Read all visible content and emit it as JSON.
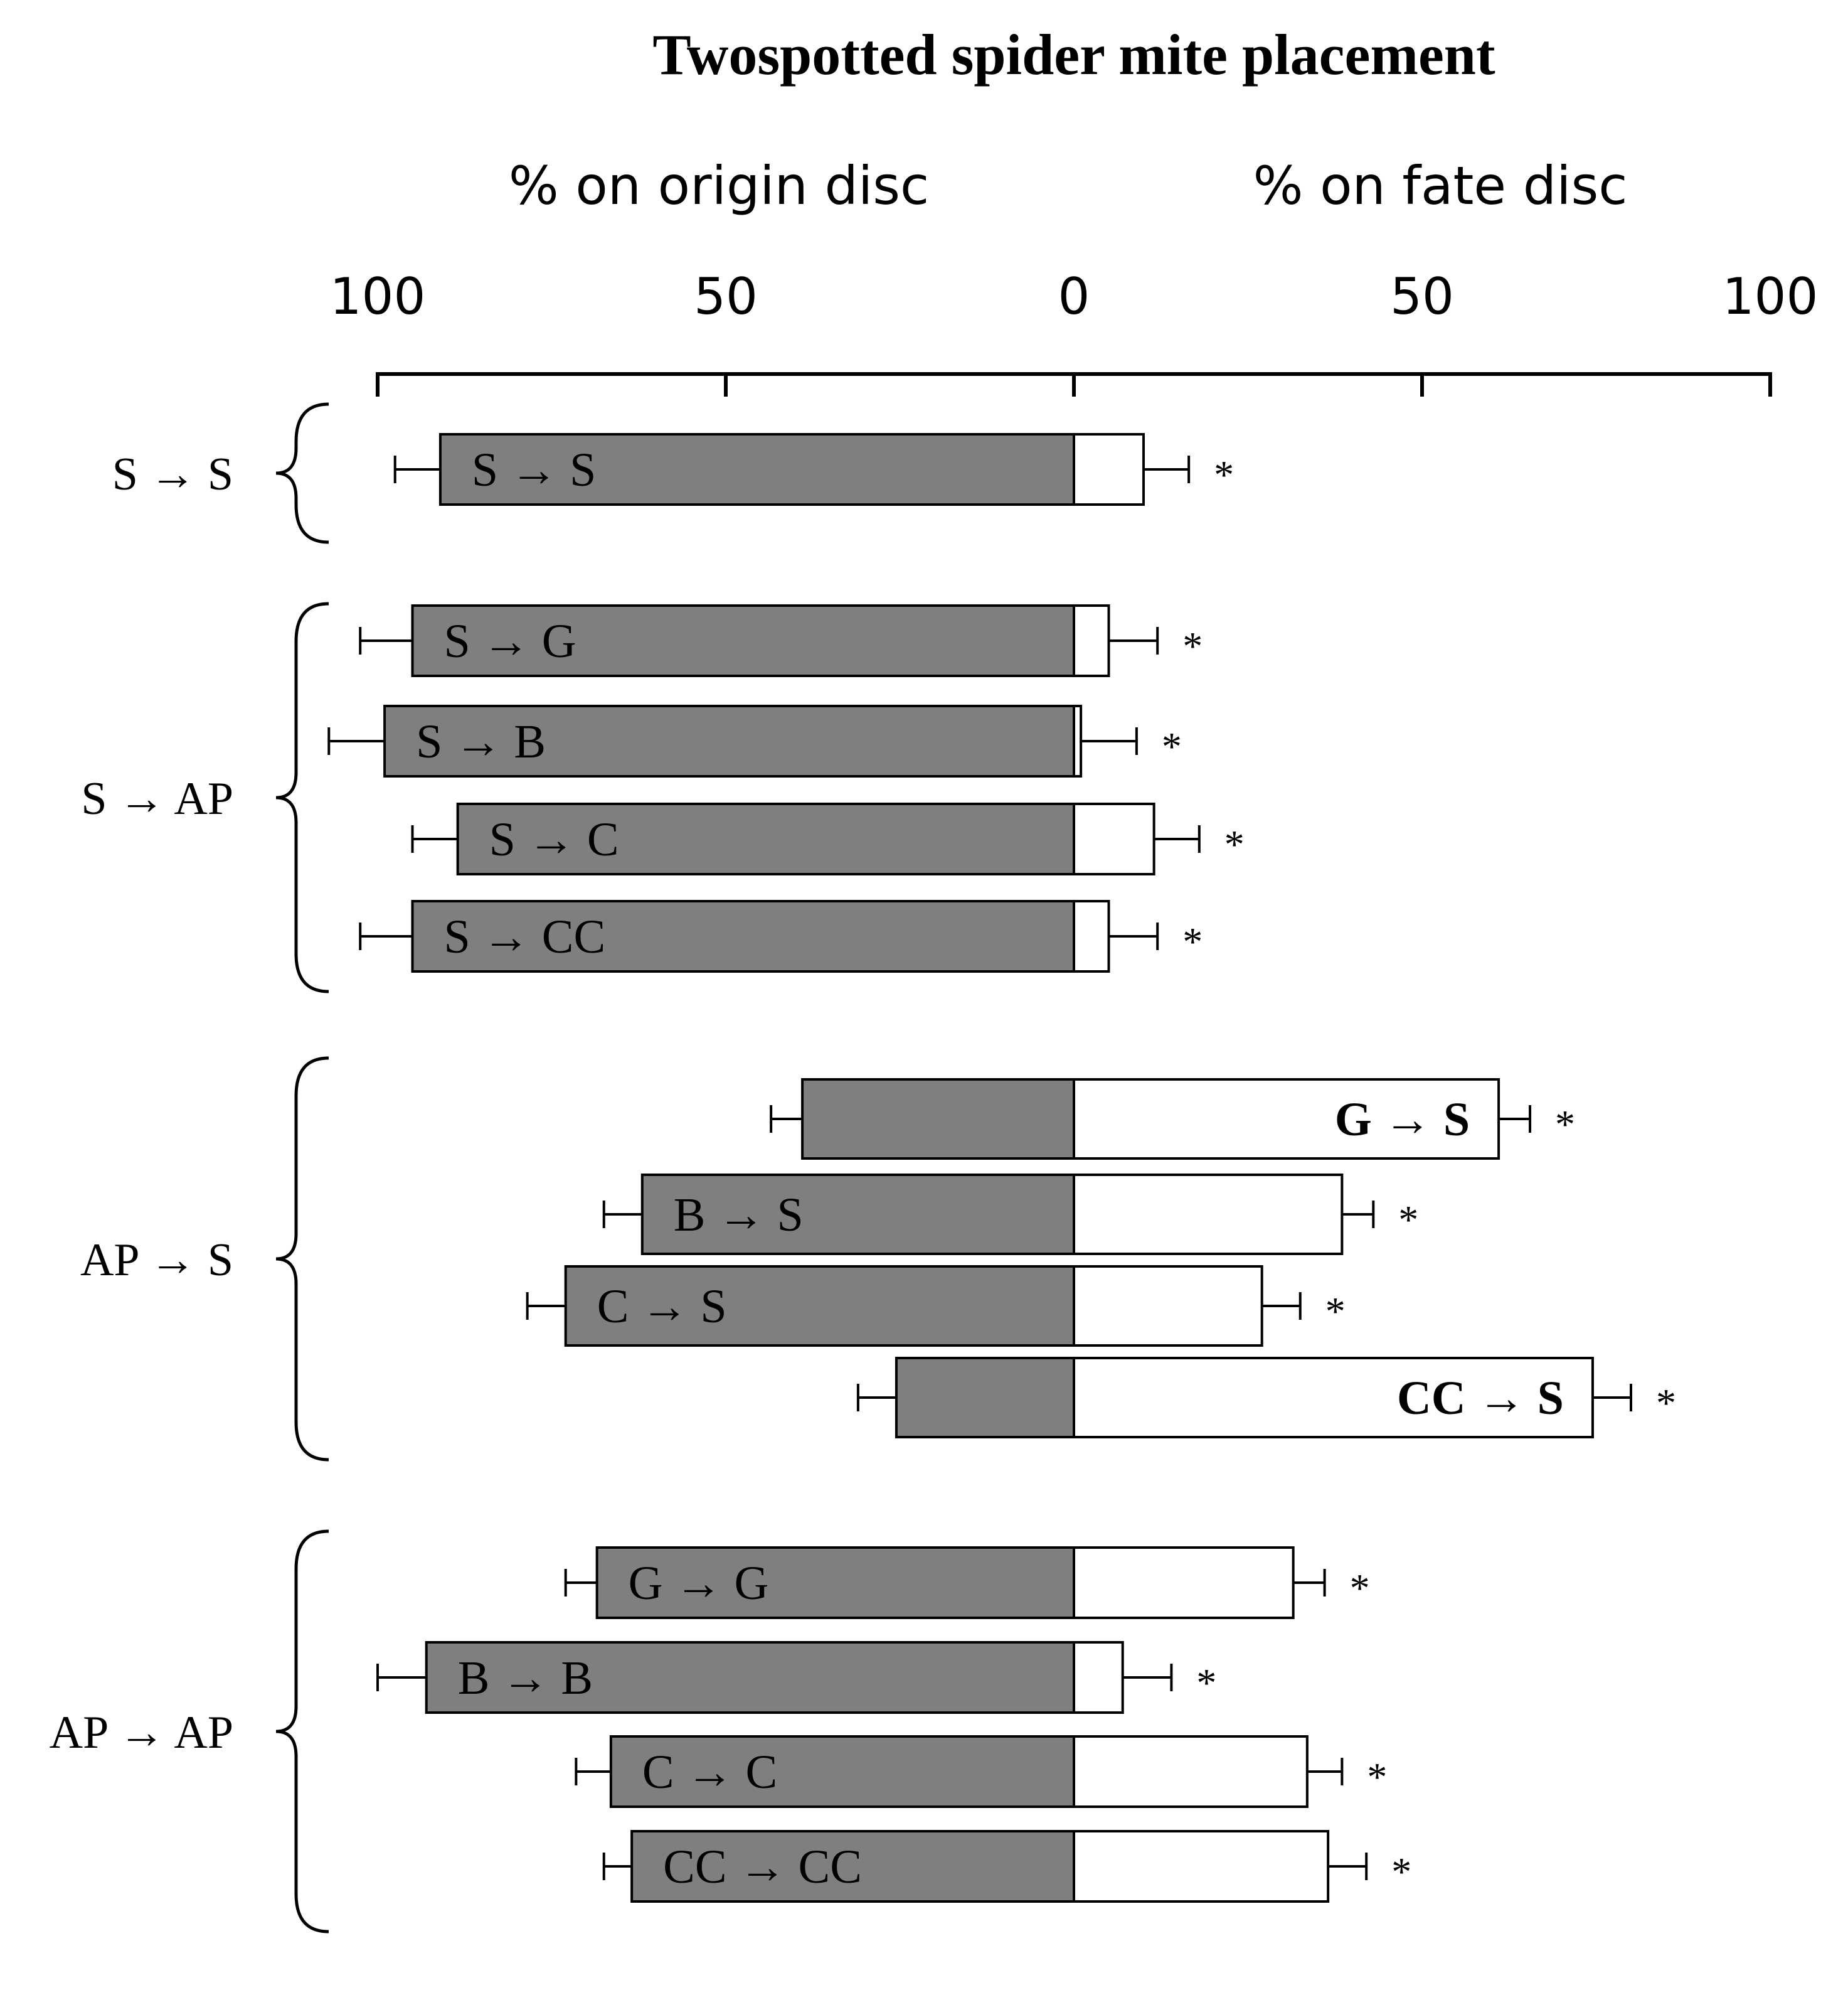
{
  "chart_data": {
    "type": "bar",
    "orientation": "horizontal-diverging",
    "title": "Twospotted spider mite placement",
    "left_axis_label": "% on origin disc",
    "right_axis_label": "% on fate disc",
    "tick_labels": [
      "100",
      "50",
      "0",
      "50",
      "100"
    ],
    "xlim": [
      -100,
      100
    ],
    "legend": "none",
    "grid": false,
    "colors": {
      "origin": "#7f7f7f",
      "fate": "#ffffff",
      "outline": "#000000"
    },
    "groups": [
      {
        "label": "S → S",
        "bars": [
          {
            "label": "S → S",
            "origin": 91,
            "fate": 10,
            "origin_err": 6.5,
            "fate_err": 6.5,
            "label_side": "origin",
            "bold": false,
            "mark": "*"
          }
        ]
      },
      {
        "label": "S → AP",
        "bars": [
          {
            "label": "S → G",
            "origin": 95,
            "fate": 5,
            "origin_err": 7.5,
            "fate_err": 7,
            "label_side": "origin",
            "bold": false,
            "mark": "*"
          },
          {
            "label": "S → B",
            "origin": 99,
            "fate": 1,
            "origin_err": 8,
            "fate_err": 8,
            "label_side": "origin",
            "bold": false,
            "mark": "*"
          },
          {
            "label": "S → C",
            "origin": 88.5,
            "fate": 11.5,
            "origin_err": 6.5,
            "fate_err": 6.5,
            "label_side": "origin",
            "bold": false,
            "mark": "*"
          },
          {
            "label": "S → CC",
            "origin": 95,
            "fate": 5,
            "origin_err": 7.5,
            "fate_err": 7,
            "label_side": "origin",
            "bold": false,
            "mark": "*"
          }
        ]
      },
      {
        "label": "AP → S",
        "bars": [
          {
            "label": "G → S",
            "origin": 39,
            "fate": 61,
            "origin_err": 4.5,
            "fate_err": 4.5,
            "label_side": "fate",
            "bold": true,
            "mark": "*"
          },
          {
            "label": "B → S",
            "origin": 62,
            "fate": 38.5,
            "origin_err": 5.5,
            "fate_err": 4.5,
            "label_side": "origin",
            "bold": false,
            "mark": "*"
          },
          {
            "label": "C → S",
            "origin": 73,
            "fate": 27,
            "origin_err": 5.5,
            "fate_err": 5.5,
            "label_side": "origin",
            "bold": false,
            "mark": "*"
          },
          {
            "label": "CC → S",
            "origin": 25.5,
            "fate": 74.5,
            "origin_err": 5.5,
            "fate_err": 5.5,
            "label_side": "fate",
            "bold": true,
            "mark": "*"
          }
        ]
      },
      {
        "label": "AP → AP",
        "bars": [
          {
            "label": "G → G",
            "origin": 68.5,
            "fate": 31.5,
            "origin_err": 4.5,
            "fate_err": 4.5,
            "label_side": "origin",
            "bold": false,
            "mark": "*"
          },
          {
            "label": "B → B",
            "origin": 93,
            "fate": 7,
            "origin_err": 7,
            "fate_err": 7,
            "label_side": "origin",
            "bold": false,
            "mark": "*"
          },
          {
            "label": "C → C",
            "origin": 66.5,
            "fate": 33.5,
            "origin_err": 5,
            "fate_err": 5,
            "label_side": "origin",
            "bold": false,
            "mark": "*"
          },
          {
            "label": "CC → CC",
            "origin": 63.5,
            "fate": 36.5,
            "origin_err": 4,
            "fate_err": 5.5,
            "label_side": "origin",
            "bold": false,
            "mark": "*"
          }
        ]
      }
    ]
  }
}
